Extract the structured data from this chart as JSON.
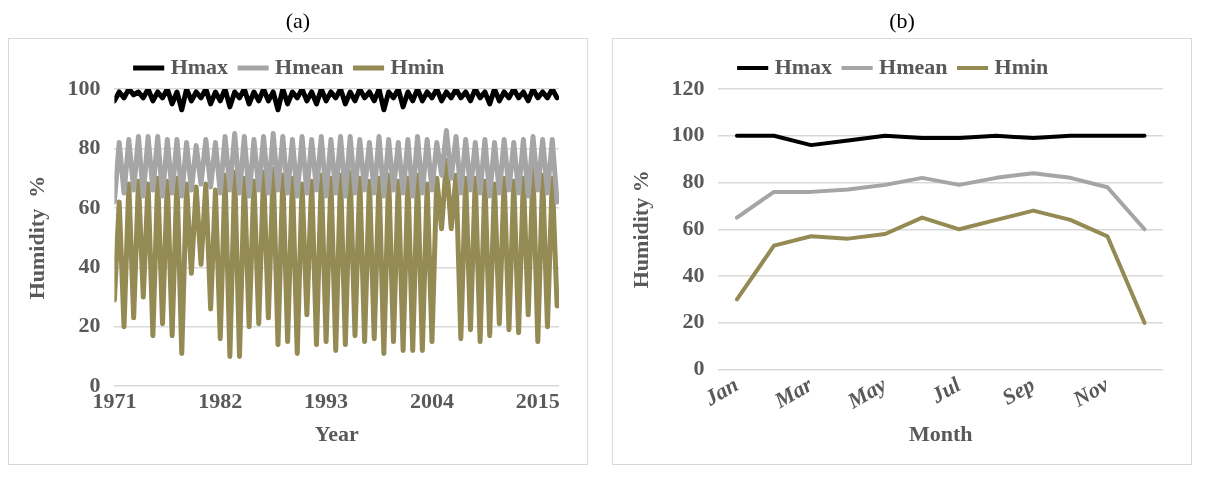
{
  "chart_data": [
    {
      "type": "line",
      "title": "(a)",
      "xlabel": "Year",
      "ylabel": "Humidity  %",
      "legend": "top",
      "grid": "y",
      "marker": "none",
      "line_style": "solid",
      "xlim": [
        1971,
        2017.2
      ],
      "ylim": [
        0,
        100
      ],
      "xticks": [
        1971,
        1982,
        1993,
        2004,
        2015
      ],
      "yticks": [
        0,
        20,
        40,
        60,
        80,
        100
      ],
      "x": [
        1971.0,
        1971.5,
        1972.0,
        1972.5,
        1973.0,
        1973.5,
        1974.0,
        1974.5,
        1975.0,
        1975.5,
        1976.0,
        1976.5,
        1977.0,
        1977.5,
        1978.0,
        1978.5,
        1979.0,
        1979.5,
        1980.0,
        1980.5,
        1981.0,
        1981.5,
        1982.0,
        1982.5,
        1983.0,
        1983.5,
        1984.0,
        1984.5,
        1985.0,
        1985.5,
        1986.0,
        1986.5,
        1987.0,
        1987.5,
        1988.0,
        1988.5,
        1989.0,
        1989.5,
        1990.0,
        1990.5,
        1991.0,
        1991.5,
        1992.0,
        1992.5,
        1993.0,
        1993.5,
        1994.0,
        1994.5,
        1995.0,
        1995.5,
        1996.0,
        1996.5,
        1997.0,
        1997.5,
        1998.0,
        1998.5,
        1999.0,
        1999.5,
        2000.0,
        2000.5,
        2001.0,
        2001.5,
        2002.0,
        2002.5,
        2003.0,
        2003.5,
        2004.0,
        2004.5,
        2005.0,
        2005.5,
        2006.0,
        2006.5,
        2007.0,
        2007.5,
        2008.0,
        2008.5,
        2009.0,
        2009.5,
        2010.0,
        2010.5,
        2011.0,
        2011.5,
        2012.0,
        2012.5,
        2013.0,
        2013.5,
        2014.0,
        2014.5,
        2015.0,
        2015.5,
        2016.0,
        2016.5,
        2017.0
      ],
      "series": [
        {
          "name": "Hmax",
          "color": "#000000",
          "values": [
            96,
            99,
            97,
            100,
            98,
            99,
            97,
            100,
            96,
            99,
            97,
            100,
            95,
            99,
            93,
            100,
            96,
            99,
            97,
            100,
            95,
            99,
            96,
            100,
            94,
            99,
            97,
            100,
            95,
            99,
            96,
            100,
            96,
            99,
            93,
            100,
            95,
            99,
            97,
            100,
            96,
            99,
            95,
            100,
            96,
            99,
            97,
            100,
            95,
            99,
            96,
            100,
            97,
            99,
            96,
            100,
            93,
            99,
            97,
            100,
            94,
            99,
            96,
            100,
            96,
            99,
            97,
            100,
            96,
            99,
            97,
            100,
            97,
            99,
            96,
            100,
            97,
            99,
            95,
            100,
            96,
            99,
            97,
            100,
            97,
            99,
            96,
            100,
            97,
            99,
            97,
            100,
            97
          ]
        },
        {
          "name": "Hmean",
          "color": "#a5a5a5",
          "values": [
            62,
            82,
            65,
            83,
            66,
            84,
            64,
            84,
            66,
            84,
            64,
            83,
            65,
            83,
            64,
            82,
            66,
            81,
            68,
            83,
            67,
            82,
            65,
            84,
            66,
            85,
            65,
            84,
            64,
            83,
            66,
            84,
            65,
            85,
            66,
            84,
            65,
            83,
            64,
            84,
            65,
            83,
            66,
            84,
            64,
            83,
            65,
            84,
            64,
            84,
            65,
            83,
            66,
            82,
            65,
            84,
            64,
            83,
            66,
            82,
            65,
            83,
            64,
            84,
            65,
            83,
            66,
            82,
            71,
            86,
            70,
            84,
            65,
            83,
            66,
            82,
            65,
            83,
            64,
            82,
            65,
            83,
            66,
            82,
            65,
            83,
            64,
            84,
            66,
            83,
            65,
            83,
            62
          ]
        },
        {
          "name": "Hmin",
          "color": "#948a54",
          "values": [
            29,
            62,
            20,
            68,
            23,
            69,
            30,
            68,
            17,
            70,
            21,
            69,
            17,
            70,
            11,
            68,
            38,
            67,
            41,
            68,
            26,
            66,
            16,
            71,
            10,
            72,
            10,
            70,
            20,
            69,
            21,
            72,
            23,
            73,
            14,
            71,
            15,
            70,
            11,
            68,
            24,
            69,
            14,
            71,
            15,
            70,
            12,
            71,
            14,
            72,
            17,
            70,
            15,
            69,
            16,
            70,
            11,
            71,
            15,
            69,
            12,
            70,
            12,
            71,
            12,
            68,
            15,
            70,
            53,
            76,
            53,
            71,
            16,
            70,
            19,
            70,
            15,
            69,
            17,
            68,
            21,
            70,
            19,
            69,
            18,
            70,
            24,
            73,
            15,
            71,
            20,
            70,
            27
          ]
        }
      ]
    },
    {
      "type": "line",
      "title": "(b)",
      "xlabel": "Month",
      "ylabel": "Humidity %",
      "legend": "top",
      "grid": "y",
      "marker": "none",
      "line_style": "solid",
      "ylim": [
        0,
        120
      ],
      "yticks": [
        0,
        20,
        40,
        60,
        80,
        100,
        120
      ],
      "categories": [
        "Jan",
        null,
        "Mar",
        null,
        "May",
        null,
        "Jul",
        null,
        "Sep",
        null,
        "Nov",
        null
      ],
      "series": [
        {
          "name": "Hmax",
          "color": "#000000",
          "values": [
            100,
            100,
            96,
            98,
            100,
            99,
            99,
            100,
            99,
            100,
            100,
            100
          ]
        },
        {
          "name": "Hmean",
          "color": "#a5a5a5",
          "values": [
            65,
            76,
            76,
            77,
            79,
            82,
            79,
            82,
            84,
            82,
            78,
            60
          ]
        },
        {
          "name": "Hmin",
          "color": "#948a54",
          "values": [
            30,
            53,
            57,
            56,
            58,
            65,
            60,
            64,
            68,
            64,
            57,
            20
          ]
        }
      ]
    }
  ]
}
